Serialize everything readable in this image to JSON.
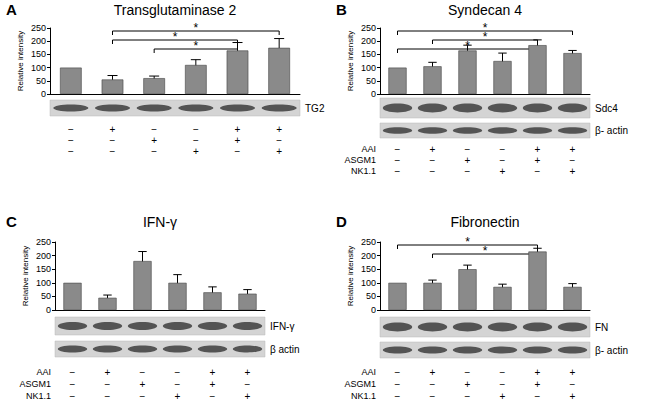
{
  "chart_data": [
    {
      "type": "bar",
      "panel": "A",
      "title": "Transglutaminase 2",
      "ylabel": "Relative intensity",
      "categories": [
        null,
        null,
        null,
        null,
        null,
        null
      ],
      "values": [
        100,
        55,
        60,
        110,
        165,
        175
      ],
      "errors": [
        0,
        15,
        8,
        20,
        30,
        35
      ],
      "color": "#8a8a8a",
      "ylim": [
        0,
        250
      ],
      "yticks": [
        0,
        50,
        100,
        150,
        200,
        250
      ],
      "grid": false,
      "tick_labels": "y",
      "significance": [
        {
          "from": 1,
          "to": 5,
          "label": "*"
        },
        {
          "from": 1,
          "to": 4,
          "label": "*"
        },
        {
          "from": 2,
          "to": 4,
          "label": "*"
        }
      ],
      "blots": [
        "TG2"
      ],
      "treatments": [
        {
          "signs": [
            "−",
            "+",
            "−",
            "−",
            "+",
            "+"
          ]
        },
        {
          "signs": [
            "−",
            "−",
            "+",
            "−",
            "+",
            "−"
          ]
        },
        {
          "signs": [
            "−",
            "−",
            "−",
            "+",
            "−",
            "+"
          ]
        }
      ]
    },
    {
      "type": "bar",
      "panel": "B",
      "title": "Syndecan 4",
      "ylabel": "Relative intensity",
      "categories": [
        null,
        null,
        null,
        null,
        null,
        null
      ],
      "values": [
        100,
        105,
        165,
        125,
        185,
        155
      ],
      "errors": [
        0,
        15,
        20,
        30,
        20,
        10
      ],
      "color": "#8a8a8a",
      "ylim": [
        0,
        250
      ],
      "yticks": [
        0,
        50,
        100,
        150,
        200,
        250
      ],
      "grid": false,
      "tick_labels": "y",
      "significance": [
        {
          "from": 0,
          "to": 5,
          "label": "*"
        },
        {
          "from": 1,
          "to": 4,
          "label": "*"
        },
        {
          "from": 0,
          "to": 4,
          "label": "*"
        }
      ],
      "blots": [
        "Sdc4",
        "β- actin"
      ],
      "treatments": [
        {
          "name": "AAI",
          "signs": [
            "−",
            "+",
            "−",
            "−",
            "+",
            "+"
          ]
        },
        {
          "name": "ASGM1",
          "signs": [
            "−",
            "−",
            "+",
            "−",
            "+",
            "−"
          ]
        },
        {
          "name": "NK1.1",
          "signs": [
            "−",
            "−",
            "−",
            "+",
            "−",
            "+"
          ]
        }
      ]
    },
    {
      "type": "bar",
      "panel": "C",
      "title": "IFN-γ",
      "ylabel": "Relative intensity",
      "categories": [
        null,
        null,
        null,
        null,
        null,
        null
      ],
      "values": [
        100,
        45,
        180,
        100,
        65,
        60
      ],
      "errors": [
        0,
        10,
        35,
        30,
        20,
        15
      ],
      "color": "#8a8a8a",
      "ylim": [
        0,
        250
      ],
      "yticks": [
        0,
        50,
        100,
        150,
        200,
        250
      ],
      "grid": false,
      "tick_labels": "y",
      "significance": [],
      "blots": [
        "IFN-γ",
        "β actin"
      ],
      "treatments": [
        {
          "name": "AAI",
          "signs": [
            "−",
            "+",
            "−",
            "−",
            "+",
            "+"
          ]
        },
        {
          "name": "ASGM1",
          "signs": [
            "−",
            "−",
            "+",
            "−",
            "+",
            "−"
          ]
        },
        {
          "name": "NK1.1",
          "signs": [
            "−",
            "−",
            "−",
            "+",
            "−",
            "+"
          ]
        }
      ]
    },
    {
      "type": "bar",
      "panel": "D",
      "title": "Fibronectin",
      "ylabel": "Relative intensity",
      "categories": [
        null,
        null,
        null,
        null,
        null,
        null
      ],
      "values": [
        100,
        100,
        150,
        85,
        215,
        85
      ],
      "errors": [
        0,
        10,
        15,
        10,
        12,
        12
      ],
      "color": "#8a8a8a",
      "ylim": [
        0,
        250
      ],
      "yticks": [
        0,
        50,
        100,
        150,
        200,
        250
      ],
      "grid": false,
      "tick_labels": "y",
      "significance": [
        {
          "from": 0,
          "to": 4,
          "label": "*"
        },
        {
          "from": 1,
          "to": 4,
          "label": "*"
        }
      ],
      "blots": [
        "FN",
        "β- actin"
      ],
      "treatments": [
        {
          "name": "AAI",
          "signs": [
            "−",
            "+",
            "−",
            "−",
            "+",
            "+"
          ]
        },
        {
          "name": "ASGM1",
          "signs": [
            "−",
            "−",
            "+",
            "−",
            "+",
            "−"
          ]
        },
        {
          "name": "NK1.1",
          "signs": [
            "−",
            "−",
            "−",
            "+",
            "−",
            "+"
          ]
        }
      ]
    }
  ]
}
